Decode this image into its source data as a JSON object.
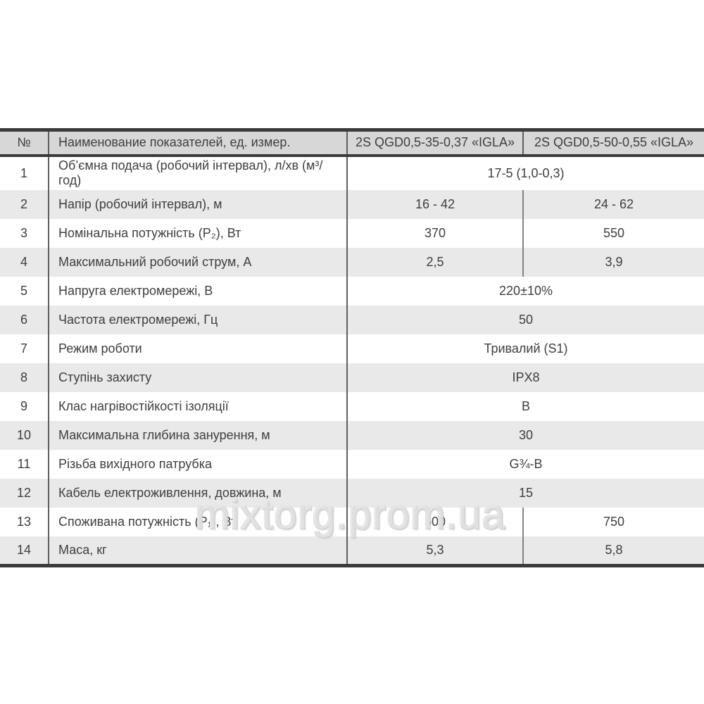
{
  "watermark": "mixtorg.prom.ua",
  "palette": {
    "header_bg": "#d7d7d7",
    "alt_row_bg": "#e9e9e9",
    "border_dark": "#3a3a3a",
    "divider": "#5f5f5f",
    "text": "#3e3e3e"
  },
  "table": {
    "columns": [
      "№",
      "Наименование показателей, ед. измер.",
      "2S QGD0,5-35-0,37 «IGLA»",
      "2S QGD0,5-50-0,55 «IGLA»"
    ],
    "rows": [
      {
        "num": "1",
        "label": "Об’ємна подача (робочий інтервал), л/хв (м³/​год)",
        "value": "17-5 (1,0-0,3)"
      },
      {
        "num": "2",
        "label": "Напір (робочий інтервал), м",
        "v1": "16 - 42",
        "v2": "24 - 62"
      },
      {
        "num": "3",
        "label": "Номінальна потужність (P₂), Вт",
        "v1": "370",
        "v2": "550"
      },
      {
        "num": "4",
        "label": "Максимальний робочий струм, А",
        "v1": "2,5",
        "v2": "3,9"
      },
      {
        "num": "5",
        "label": "Напруга електромережі, В",
        "value": "220±10%"
      },
      {
        "num": "6",
        "label": "Частота електромережі, Гц",
        "value": "50"
      },
      {
        "num": "7",
        "label": "Режим роботи",
        "value": "Тривалий (S1)"
      },
      {
        "num": "8",
        "label": "Ступінь захисту",
        "value": "IPX8"
      },
      {
        "num": "9",
        "label": "Клас нагрівостійкості ізоляції",
        "value": "В"
      },
      {
        "num": "10",
        "label": "Максимальна глибина занурення, м",
        "value": "30"
      },
      {
        "num": "11",
        "label": "Різьба вихідного патрубка",
        "value": "G¾-В"
      },
      {
        "num": "12",
        "label": "Кабель електроживлення, довжина, м",
        "value": "15"
      },
      {
        "num": "13",
        "label": "Споживана потужність (P₁), Вт",
        "v1": "500",
        "v2": "750"
      },
      {
        "num": "14",
        "label": "Маса, кг",
        "v1": "5,3",
        "v2": "5,8"
      }
    ]
  }
}
